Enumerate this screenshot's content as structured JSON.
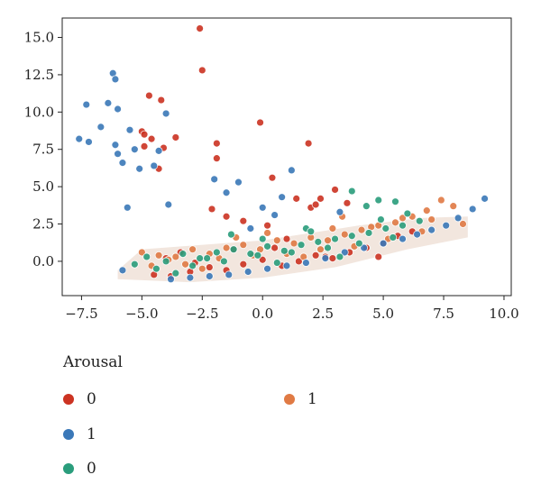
{
  "chart_data": {
    "type": "scatter",
    "title": "",
    "xlabel": "",
    "ylabel": "",
    "xlim": [
      -8.3,
      10.3
    ],
    "ylim": [
      -2.3,
      16.3
    ],
    "xticks": [
      -7.5,
      -5.0,
      -2.5,
      0.0,
      2.5,
      5.0,
      7.5,
      10.0
    ],
    "xtick_labels": [
      "−7.5",
      "−5.0",
      "−2.5",
      "0.0",
      "2.5",
      "5.0",
      "7.5",
      "10.0"
    ],
    "yticks": [
      0.0,
      2.5,
      5.0,
      7.5,
      10.0,
      12.5,
      15.0
    ],
    "ytick_labels": [
      "0.0",
      "2.5",
      "5.0",
      "7.5",
      "10.0",
      "12.5",
      "15.0"
    ],
    "grid": false,
    "legend_position": "below",
    "legend_title": "Arousal",
    "legend": [
      {
        "label": "0",
        "color": "#cc3322"
      },
      {
        "label": "1",
        "color": "#e07a44"
      },
      {
        "label": "1",
        "color": "#3a78b8"
      },
      {
        "label": "0",
        "color": "#2a9d7c"
      }
    ],
    "series": [
      {
        "name": "0",
        "color": "#cc3322",
        "x": [
          -2.6,
          -2.5,
          -0.1,
          -4.7,
          -4.2,
          -5.0,
          -4.9,
          -4.6,
          -4.1,
          -3.6,
          -4.9,
          -4.3,
          -1.9,
          -1.9,
          1.9,
          0.4,
          3.0,
          2.4,
          2.0,
          -1.5,
          -2.1,
          0.2,
          -0.8,
          1.4,
          2.2,
          3.5,
          -4.5,
          -3.8,
          -3.0,
          -2.2,
          -1.5,
          -0.8,
          0.0,
          0.8,
          1.5,
          2.2,
          2.9,
          3.6,
          4.3,
          5.0,
          -4.0,
          -2.8,
          -1.2,
          0.5,
          2.6,
          4.8,
          5.6,
          6.2,
          -3.4,
          1.0
        ],
        "y": [
          15.6,
          12.8,
          9.3,
          11.1,
          10.8,
          8.7,
          8.5,
          8.2,
          7.6,
          8.3,
          7.7,
          6.2,
          7.9,
          6.9,
          7.9,
          5.6,
          4.8,
          4.2,
          3.6,
          3.0,
          3.5,
          2.4,
          2.7,
          4.2,
          3.8,
          3.9,
          -0.9,
          -1.0,
          -0.7,
          -0.4,
          -0.6,
          -0.2,
          0.1,
          -0.3,
          0.0,
          0.4,
          0.2,
          0.6,
          0.9,
          1.2,
          0.2,
          -0.1,
          0.8,
          0.9,
          0.3,
          0.3,
          1.7,
          2.0,
          0.6,
          1.5
        ]
      },
      {
        "name": "1",
        "color": "#e07a44",
        "x": [
          -5.0,
          -4.3,
          -3.6,
          -2.9,
          -2.2,
          -1.5,
          -0.8,
          -0.1,
          0.6,
          1.3,
          2.0,
          2.7,
          3.4,
          4.1,
          4.8,
          5.5,
          6.2,
          6.8,
          7.4,
          7.9,
          8.3,
          -4.6,
          -3.2,
          -1.8,
          -0.4,
          1.0,
          2.4,
          3.8,
          5.2,
          6.6,
          3.3,
          4.5,
          0.2,
          -2.5,
          1.7,
          5.8,
          7.0,
          -3.9,
          -1.1,
          2.9
        ],
        "y": [
          0.6,
          0.4,
          0.3,
          0.8,
          0.5,
          0.9,
          1.1,
          0.8,
          1.4,
          1.2,
          1.6,
          1.4,
          1.8,
          2.1,
          2.4,
          2.6,
          3.0,
          3.4,
          4.1,
          3.7,
          2.5,
          -0.3,
          -0.2,
          0.2,
          0.4,
          0.5,
          0.8,
          1.0,
          1.5,
          2.0,
          3.0,
          2.3,
          1.9,
          -0.5,
          0.3,
          2.9,
          2.8,
          0.1,
          1.6,
          2.2
        ]
      },
      {
        "name": "1",
        "color": "#3a78b8",
        "x": [
          -6.2,
          -6.1,
          -7.3,
          -6.4,
          -6.0,
          -6.7,
          -5.5,
          -7.6,
          -7.2,
          -6.1,
          -6.0,
          -5.8,
          -5.1,
          -5.3,
          -4.5,
          -4.0,
          -4.3,
          -5.6,
          -3.9,
          -2.0,
          -1.0,
          -1.5,
          1.2,
          0.8,
          3.2,
          0.0,
          0.5,
          -0.5,
          9.2,
          8.7,
          8.1,
          7.6,
          7.0,
          6.4,
          5.8,
          5.0,
          4.2,
          3.4,
          2.6,
          1.8,
          1.0,
          0.2,
          -0.6,
          -1.4,
          -2.2,
          -3.0,
          -3.8,
          -5.8
        ],
        "y": [
          12.6,
          12.2,
          10.5,
          10.6,
          10.2,
          9.0,
          8.8,
          8.2,
          8.0,
          7.8,
          7.2,
          6.6,
          6.2,
          7.5,
          6.4,
          9.9,
          7.4,
          3.6,
          3.8,
          5.5,
          5.3,
          4.6,
          6.1,
          4.3,
          3.3,
          3.6,
          3.1,
          2.2,
          4.2,
          3.5,
          2.9,
          2.4,
          2.1,
          1.8,
          1.5,
          1.2,
          0.9,
          0.6,
          0.2,
          -0.1,
          -0.3,
          -0.5,
          -0.7,
          -0.9,
          -1.0,
          -1.1,
          -1.2,
          -0.6
        ]
      },
      {
        "name": "0",
        "color": "#2a9d7c",
        "x": [
          3.7,
          4.8,
          5.5,
          4.3,
          1.8,
          -1.3,
          0.0,
          -4.8,
          -4.0,
          -3.3,
          -2.6,
          -1.9,
          -1.2,
          -0.5,
          0.2,
          0.9,
          1.6,
          2.3,
          3.0,
          3.7,
          4.4,
          5.1,
          5.8,
          6.5,
          -4.4,
          -2.9,
          -1.6,
          -0.2,
          1.2,
          2.7,
          4.0,
          5.4,
          6.0,
          -3.6,
          0.6,
          3.2,
          -2.3,
          2.0,
          -5.3,
          4.9
        ],
        "y": [
          4.7,
          4.1,
          4.0,
          3.7,
          2.2,
          1.8,
          1.5,
          0.3,
          0.0,
          0.5,
          0.2,
          0.6,
          0.8,
          0.5,
          1.0,
          0.7,
          1.1,
          1.3,
          1.5,
          1.7,
          1.9,
          2.2,
          2.4,
          2.7,
          -0.5,
          -0.3,
          0.0,
          0.4,
          0.6,
          0.9,
          1.2,
          1.6,
          3.2,
          -0.8,
          -0.1,
          0.3,
          0.2,
          2.0,
          -0.2,
          2.8
        ]
      }
    ]
  }
}
